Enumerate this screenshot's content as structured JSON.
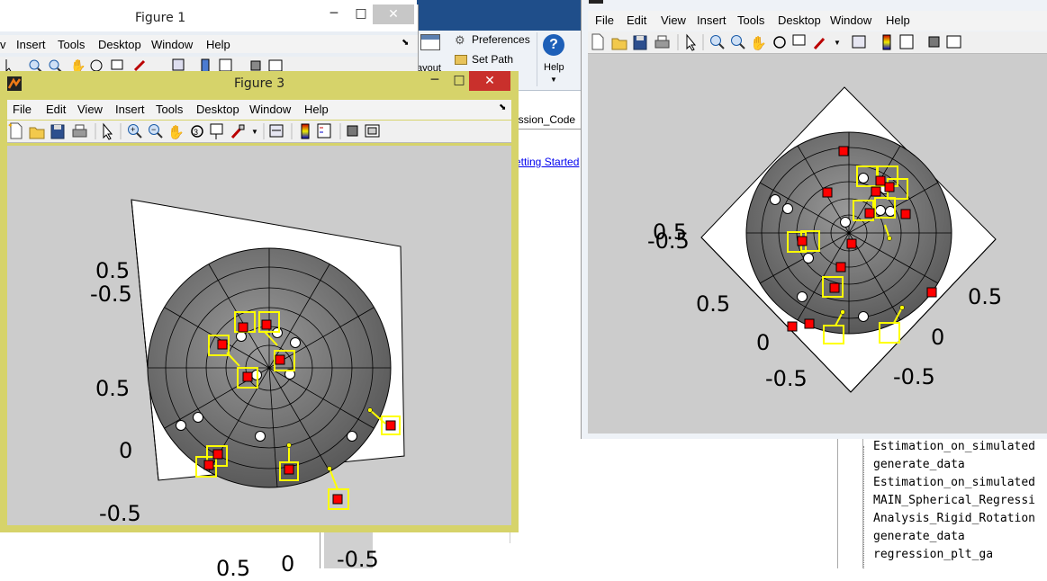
{
  "background_window": {
    "toolstrip": {
      "preferences_label": "Preferences",
      "set_path_label": "Set Path",
      "help_label": "Help",
      "layout_label": "ayout",
      "tab_label": "ession_Code",
      "getting_started_link": "etting Started"
    },
    "file_list": [
      "Estimation_on_simulated",
      "generate_data",
      "Estimation_on_simulated",
      "MAIN_Spherical_Regressi",
      "Analysis_Rigid_Rotation",
      "generate_data",
      "regression_plt_ga"
    ]
  },
  "figure1": {
    "title": "Figure 1",
    "menu": [
      "Insert",
      "Tools",
      "Desktop",
      "Window",
      "Help"
    ],
    "menu_partial": "v"
  },
  "figure3": {
    "title": "Figure 3",
    "menu": [
      "File",
      "Edit",
      "View",
      "Insert",
      "Tools",
      "Desktop",
      "Window",
      "Help"
    ],
    "axis_labels": {
      "z_top_a": "0.5",
      "z_top_b": "-0.5",
      "z_mid": "0.5",
      "z_zero": "0",
      "z_bottom": "-0.5",
      "x_left": "0.5",
      "x_mid": "0",
      "x_right": "-0.5"
    }
  },
  "figure_right": {
    "menu": [
      "File",
      "Edit",
      "View",
      "Insert",
      "Tools",
      "Desktop",
      "Window",
      "Help"
    ],
    "axis_labels": {
      "z_top_a": "0.5",
      "z_top_b": "-0.5",
      "left_a": "0.5",
      "left_b": "0",
      "left_c": "-0.5",
      "right_a": "0.5",
      "right_b": "0",
      "right_c": "-0.5"
    }
  },
  "icons": [
    "new-file-icon",
    "open-icon",
    "save-icon",
    "print-icon",
    "pointer-icon",
    "zoom-in-icon",
    "zoom-out-icon",
    "pan-icon",
    "rotate-icon",
    "data-cursor-icon",
    "brush-icon",
    "link-icon",
    "colorbar-icon",
    "legend-icon",
    "hide-plot-tools-icon",
    "show-plot-tools-icon"
  ],
  "colors": {
    "figure_frame": "#d6d36a",
    "sphere_fill": "#7a7a7a",
    "marker_red": "#ff0000",
    "marker_yellow": "#ffff00"
  }
}
